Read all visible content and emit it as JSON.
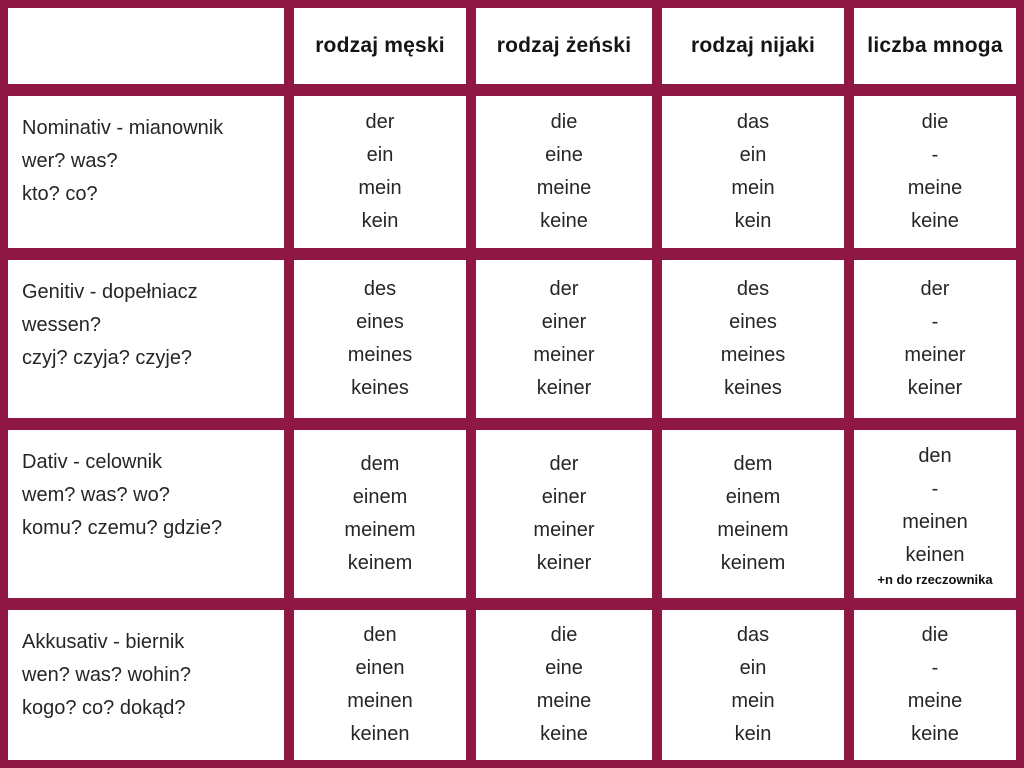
{
  "colors": {
    "background": "#8e1843",
    "cell": "#ffffff",
    "body_text": "#262626",
    "header_text": "#151515"
  },
  "table": {
    "corner_label": "",
    "column_headers": [
      "rodzaj męski",
      "rodzaj żeński",
      "rodzaj nijaki",
      "liczba mnoga"
    ],
    "rows": [
      {
        "case_label_lines": [
          "Nominativ - mianownik",
          "wer? was?",
          "kto? co?"
        ],
        "cells": [
          {
            "forms": [
              "der",
              "ein",
              "mein",
              "kein"
            ]
          },
          {
            "forms": [
              "die",
              "eine",
              "meine",
              "keine"
            ]
          },
          {
            "forms": [
              "das",
              "ein",
              "mein",
              "kein"
            ]
          },
          {
            "forms": [
              "die",
              "-",
              "meine",
              "keine"
            ]
          }
        ]
      },
      {
        "case_label_lines": [
          "Genitiv - dopełniacz",
          "wessen?",
          "czyj? czyja? czyje?"
        ],
        "cells": [
          {
            "forms": [
              "des",
              "eines",
              "meines",
              "keines"
            ]
          },
          {
            "forms": [
              "der",
              "einer",
              "meiner",
              "keiner"
            ]
          },
          {
            "forms": [
              "des",
              "eines",
              "meines",
              "keines"
            ]
          },
          {
            "forms": [
              "der",
              "-",
              "meiner",
              "keiner"
            ]
          }
        ]
      },
      {
        "case_label_lines": [
          "Dativ - celownik",
          "wem? was? wo?",
          "komu? czemu? gdzie?"
        ],
        "cells": [
          {
            "forms": [
              "dem",
              "einem",
              "meinem",
              "keinem"
            ]
          },
          {
            "forms": [
              "der",
              "einer",
              "meiner",
              "keiner"
            ]
          },
          {
            "forms": [
              "dem",
              "einem",
              "meinem",
              "keinem"
            ]
          },
          {
            "forms": [
              "den",
              "-",
              "meinen",
              "keinen"
            ],
            "note": "+n do rzeczownika"
          }
        ]
      },
      {
        "case_label_lines": [
          "Akkusativ - biernik",
          "wen? was? wohin?",
          "kogo? co? dokąd?"
        ],
        "cells": [
          {
            "forms": [
              "den",
              "einen",
              "meinen",
              "keinen"
            ]
          },
          {
            "forms": [
              "die",
              "eine",
              "meine",
              "keine"
            ]
          },
          {
            "forms": [
              "das",
              "ein",
              "mein",
              "kein"
            ]
          },
          {
            "forms": [
              "die",
              "-",
              "meine",
              "keine"
            ]
          }
        ]
      }
    ]
  }
}
